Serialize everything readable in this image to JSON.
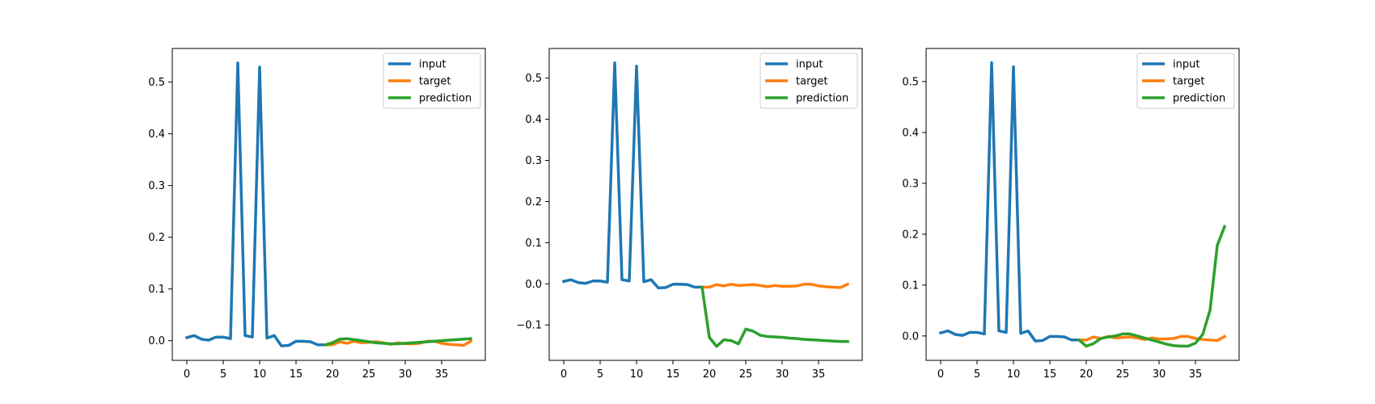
{
  "colors": {
    "input": "#1f77b4",
    "target": "#ff7f0e",
    "prediction": "#2ca02c"
  },
  "chart_data": [
    {
      "type": "line",
      "xlim": [
        -2,
        41
      ],
      "ylim": [
        -0.038,
        0.565
      ],
      "x_ticks": [
        0,
        5,
        10,
        15,
        20,
        25,
        30,
        35
      ],
      "y_ticks": [
        0.0,
        0.1,
        0.2,
        0.3,
        0.4,
        0.5
      ],
      "y_tick_labels": [
        "0.0",
        "0.1",
        "0.2",
        "0.3",
        "0.4",
        "0.5"
      ],
      "legend_position": "top-right",
      "series": [
        {
          "name": "input",
          "color_key": "input",
          "x_start": 0,
          "values": [
            0.006,
            0.01,
            0.003,
            0.001,
            0.007,
            0.007,
            0.004,
            0.537,
            0.01,
            0.007,
            0.529,
            0.005,
            0.01,
            -0.01,
            -0.009,
            -0.001,
            -0.001,
            -0.002,
            -0.008,
            -0.008
          ]
        },
        {
          "name": "target",
          "color_key": "target",
          "x_start": 19,
          "values": [
            -0.008,
            -0.008,
            -0.002,
            -0.005,
            -0.001,
            -0.004,
            -0.003,
            -0.002,
            -0.004,
            -0.007,
            -0.004,
            -0.006,
            -0.006,
            -0.005,
            -0.001,
            -0.001,
            -0.005,
            -0.007,
            -0.008,
            -0.009,
            -0.001
          ]
        },
        {
          "name": "prediction",
          "color_key": "prediction",
          "x_start": 19,
          "values": [
            -0.008,
            -0.004,
            0.003,
            0.004,
            0.002,
            0.0,
            -0.002,
            -0.004,
            -0.005,
            -0.006,
            -0.006,
            -0.005,
            -0.004,
            -0.003,
            -0.002,
            -0.001,
            0.0,
            0.001,
            0.002,
            0.003,
            0.004
          ]
        }
      ]
    },
    {
      "type": "line",
      "xlim": [
        -2,
        41
      ],
      "ylim": [
        -0.186,
        0.572
      ],
      "x_ticks": [
        0,
        5,
        10,
        15,
        20,
        25,
        30,
        35
      ],
      "y_ticks": [
        -0.1,
        0.0,
        0.1,
        0.2,
        0.3,
        0.4,
        0.5
      ],
      "y_tick_labels": [
        "−0.1",
        "0.0",
        "0.1",
        "0.2",
        "0.3",
        "0.4",
        "0.5"
      ],
      "legend_position": "top-right",
      "series": [
        {
          "name": "input",
          "color_key": "input",
          "x_start": 0,
          "values": [
            0.006,
            0.01,
            0.003,
            0.001,
            0.007,
            0.007,
            0.004,
            0.537,
            0.01,
            0.007,
            0.529,
            0.005,
            0.01,
            -0.01,
            -0.009,
            -0.001,
            -0.001,
            -0.002,
            -0.008,
            -0.008
          ]
        },
        {
          "name": "target",
          "color_key": "target",
          "x_start": 19,
          "values": [
            -0.008,
            -0.008,
            -0.002,
            -0.005,
            -0.001,
            -0.004,
            -0.003,
            -0.002,
            -0.004,
            -0.007,
            -0.004,
            -0.006,
            -0.006,
            -0.005,
            -0.001,
            -0.001,
            -0.005,
            -0.007,
            -0.008,
            -0.009,
            -0.001
          ]
        },
        {
          "name": "prediction",
          "color_key": "prediction",
          "x_start": 19,
          "values": [
            -0.008,
            -0.13,
            -0.152,
            -0.136,
            -0.138,
            -0.146,
            -0.11,
            -0.115,
            -0.125,
            -0.128,
            -0.129,
            -0.13,
            -0.132,
            -0.133,
            -0.135,
            -0.136,
            -0.137,
            -0.138,
            -0.139,
            -0.14,
            -0.14
          ]
        }
      ]
    },
    {
      "type": "line",
      "xlim": [
        -2,
        41
      ],
      "ylim": [
        -0.048,
        0.565
      ],
      "x_ticks": [
        0,
        5,
        10,
        15,
        20,
        25,
        30,
        35
      ],
      "y_ticks": [
        0.0,
        0.1,
        0.2,
        0.3,
        0.4,
        0.5
      ],
      "y_tick_labels": [
        "0.0",
        "0.1",
        "0.2",
        "0.3",
        "0.4",
        "0.5"
      ],
      "legend_position": "top-right",
      "series": [
        {
          "name": "input",
          "color_key": "input",
          "x_start": 0,
          "values": [
            0.006,
            0.01,
            0.003,
            0.001,
            0.007,
            0.007,
            0.004,
            0.537,
            0.01,
            0.007,
            0.529,
            0.005,
            0.01,
            -0.01,
            -0.009,
            -0.001,
            -0.001,
            -0.002,
            -0.008,
            -0.008
          ]
        },
        {
          "name": "target",
          "color_key": "target",
          "x_start": 19,
          "values": [
            -0.008,
            -0.008,
            -0.002,
            -0.005,
            -0.001,
            -0.004,
            -0.003,
            -0.002,
            -0.004,
            -0.007,
            -0.004,
            -0.006,
            -0.006,
            -0.005,
            -0.001,
            -0.001,
            -0.005,
            -0.007,
            -0.008,
            -0.009,
            -0.001
          ]
        },
        {
          "name": "prediction",
          "color_key": "prediction",
          "x_start": 19,
          "values": [
            -0.008,
            -0.02,
            -0.015,
            -0.005,
            -0.002,
            0.0,
            0.004,
            0.004,
            0.0,
            -0.004,
            -0.008,
            -0.012,
            -0.016,
            -0.019,
            -0.02,
            -0.02,
            -0.014,
            0.003,
            0.05,
            0.178,
            0.215
          ]
        }
      ]
    }
  ]
}
